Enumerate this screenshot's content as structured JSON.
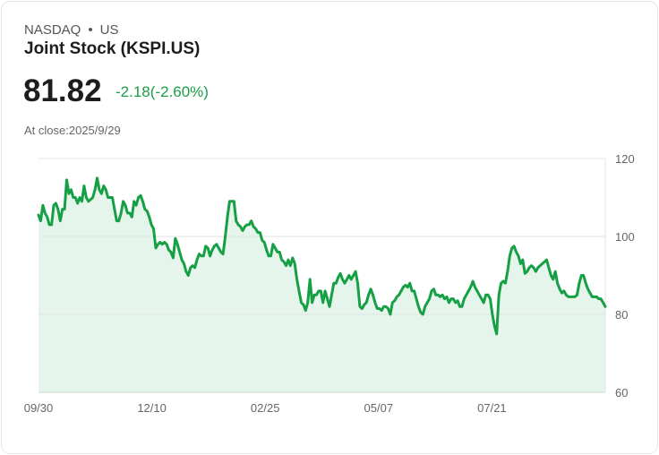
{
  "header": {
    "exchange": "NASDAQ",
    "separator": "•",
    "region": "US",
    "title": "Joint Stock (KSPI.US)",
    "price": "81.82",
    "change": "-2.18(-2.60%)",
    "close_label": "At close:2025/9/29"
  },
  "colors": {
    "line": "#16a045",
    "fill": "#e6f5ec",
    "change": "#1a9e46"
  },
  "chart_data": {
    "type": "area",
    "title": "",
    "xlabel": "",
    "ylabel": "",
    "ylim": [
      60,
      120
    ],
    "y_ticks": [
      "120",
      "100",
      "80",
      "60"
    ],
    "y_tick_values": [
      120,
      100,
      80,
      60
    ],
    "x_ticks": [
      "09/30",
      "12/10",
      "02/25",
      "05/07",
      "07/21"
    ],
    "grid": true,
    "values": [
      105.5,
      104,
      108,
      106,
      105,
      103,
      103,
      108,
      108.5,
      107,
      104,
      107,
      107,
      114.5,
      111,
      112,
      110,
      110,
      108.5,
      110,
      109,
      113,
      110,
      109,
      109.5,
      110,
      112,
      115,
      112,
      111,
      113,
      112,
      110,
      110,
      110,
      107,
      104,
      104,
      106,
      109,
      108,
      106,
      106,
      105,
      109,
      108,
      110,
      110.5,
      109,
      107,
      106.5,
      105,
      103,
      102,
      97,
      98,
      98.5,
      98,
      98.5,
      98,
      96.5,
      96,
      94.5,
      99.5,
      98,
      96,
      94,
      93,
      91,
      90,
      92,
      92.5,
      92,
      94,
      95.5,
      95,
      95,
      97.5,
      97,
      95,
      96.5,
      97.5,
      98,
      97,
      96,
      95.5,
      100,
      105,
      109,
      109,
      109,
      104,
      103,
      102.5,
      101.5,
      102.5,
      103,
      103,
      104,
      102.5,
      102,
      101,
      101,
      99,
      98.5,
      96.5,
      95,
      95,
      98,
      97,
      96,
      96,
      94,
      93.5,
      92.5,
      94,
      92.5,
      94.5,
      93,
      89,
      86,
      83,
      82.5,
      81,
      83,
      89,
      83,
      85,
      85,
      86,
      86,
      83,
      86,
      84,
      82,
      85,
      88,
      88,
      89.5,
      90.5,
      89,
      88,
      89,
      90,
      89,
      90,
      91,
      88,
      82,
      81.5,
      82.5,
      83,
      85,
      86.5,
      85,
      83,
      81.5,
      81.5,
      81,
      82,
      82,
      81.5,
      80,
      83,
      83.5,
      84.5,
      85,
      86,
      87,
      87.5,
      87,
      88,
      86,
      86,
      84,
      82,
      80.5,
      80,
      82,
      83,
      84,
      86,
      86.5,
      85,
      85,
      84.5,
      85,
      84,
      84.5,
      83,
      84,
      84,
      83,
      83.5,
      82,
      82,
      84,
      85,
      86,
      87,
      88.5,
      87,
      86,
      85,
      84,
      83,
      85,
      85,
      84,
      80,
      77,
      75,
      85,
      88,
      88.5,
      88,
      91,
      95,
      97,
      97.5,
      96,
      95,
      93,
      94,
      90.5,
      91,
      92,
      92.5,
      92,
      91,
      92,
      92.5,
      93,
      93.5,
      94,
      92,
      90,
      89,
      91,
      88,
      86.5,
      85.5,
      86,
      85,
      84.5,
      84.5,
      84.5,
      84.5,
      85,
      88,
      90,
      90,
      88,
      86.5,
      85.5,
      84.5,
      84.5,
      84.5,
      84,
      84,
      83,
      82
    ]
  }
}
